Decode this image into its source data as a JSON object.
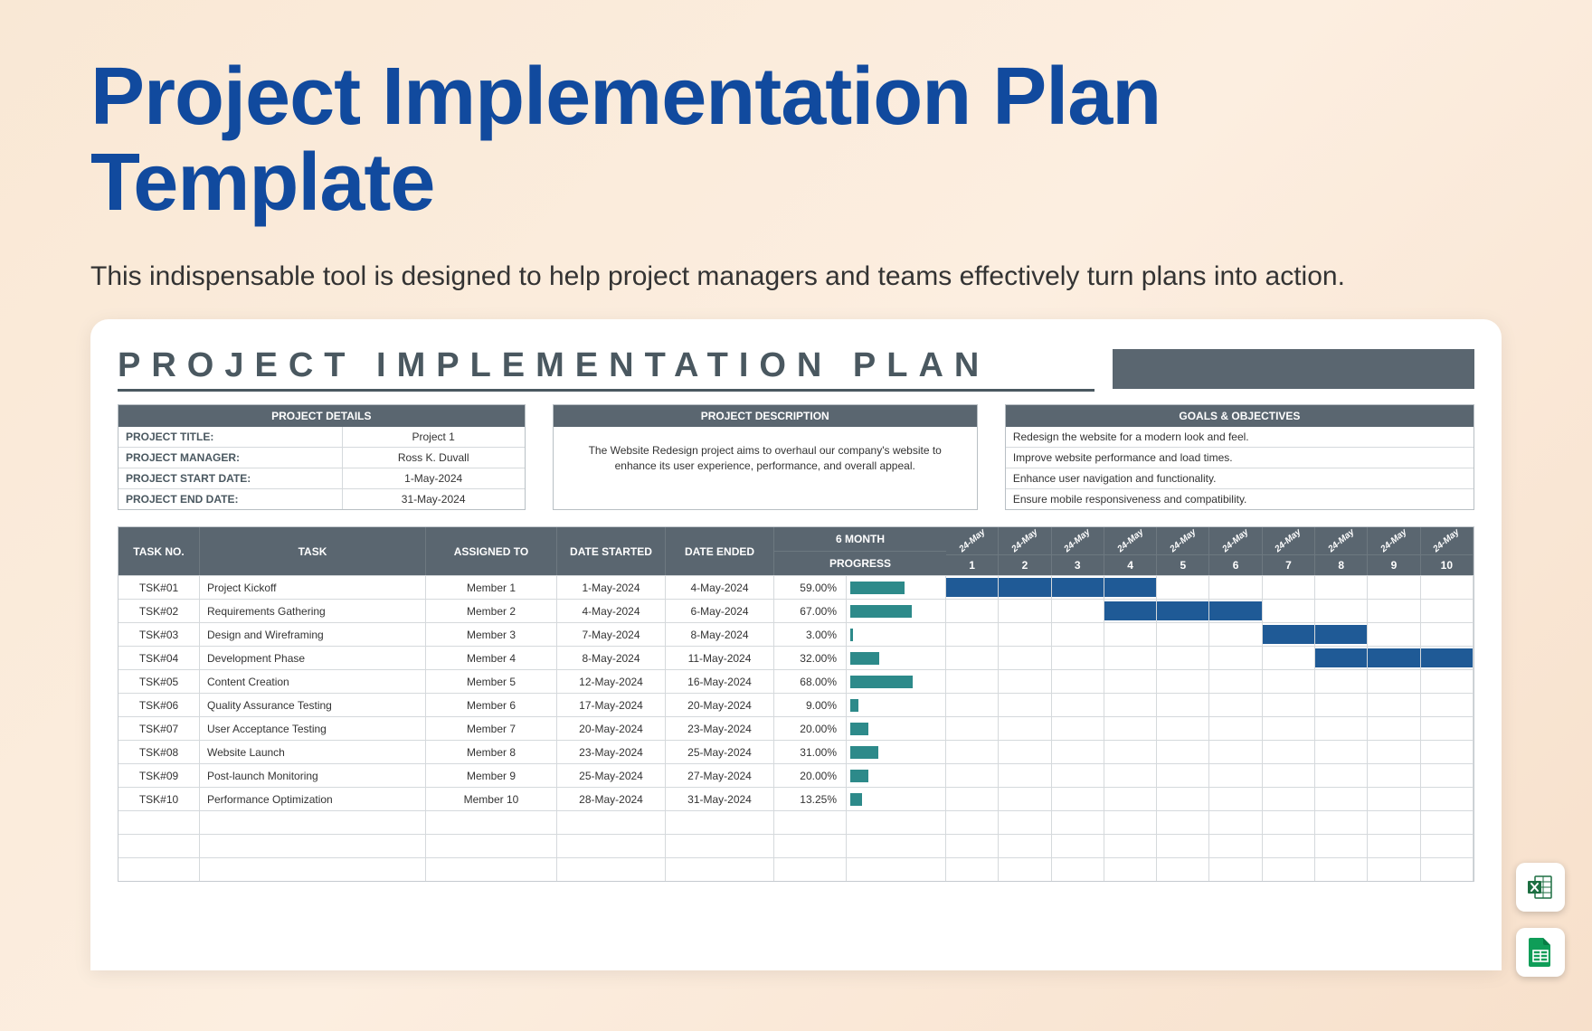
{
  "page": {
    "title": "Project Implementation Plan Template",
    "subtitle": "This indispensable tool is designed to help project managers and teams effectively turn plans into action."
  },
  "colors": {
    "title": "#114a9e",
    "header_bg": "#5a6670",
    "progress_bar": "#2d8a8a",
    "gantt_bar": "#1f5a96",
    "border": "#d5d9dc"
  },
  "sheet": {
    "heading": "PROJECT IMPLEMENTATION PLAN",
    "details": {
      "header": "PROJECT DETAILS",
      "rows": [
        {
          "label": "PROJECT TITLE:",
          "value": "Project 1"
        },
        {
          "label": "PROJECT MANAGER:",
          "value": "Ross K. Duvall"
        },
        {
          "label": "PROJECT START DATE:",
          "value": "1-May-2024"
        },
        {
          "label": "PROJECT END DATE:",
          "value": "31-May-2024"
        }
      ]
    },
    "description": {
      "header": "PROJECT DESCRIPTION",
      "body": "The Website Redesign project aims to overhaul our company's website to enhance its user experience, performance, and overall appeal."
    },
    "goals": {
      "header": "GOALS & OBJECTIVES",
      "items": [
        "Redesign the website for a modern look and feel.",
        "Improve website performance and load times.",
        "Enhance user navigation and functionality.",
        "Ensure mobile responsiveness and compatibility."
      ]
    },
    "table": {
      "columns": {
        "taskno": "TASK NO.",
        "task": "TASK",
        "assigned": "ASSIGNED TO",
        "start": "DATE STARTED",
        "end": "DATE ENDED",
        "month": "6 MONTH",
        "progress": "PROGRESS"
      },
      "day_label": "24-May",
      "day_count": 10,
      "rows": [
        {
          "no": "TSK#01",
          "task": "Project Kickoff",
          "assigned": "Member 1",
          "start": "1-May-2024",
          "end": "4-May-2024",
          "pct": "59.00%",
          "bar": 59,
          "gantt": [
            1,
            2,
            3,
            4
          ]
        },
        {
          "no": "TSK#02",
          "task": "Requirements Gathering",
          "assigned": "Member 2",
          "start": "4-May-2024",
          "end": "6-May-2024",
          "pct": "67.00%",
          "bar": 67,
          "gantt": [
            4,
            5,
            6
          ]
        },
        {
          "no": "TSK#03",
          "task": "Design and Wireframing",
          "assigned": "Member 3",
          "start": "7-May-2024",
          "end": "8-May-2024",
          "pct": "3.00%",
          "bar": 3,
          "gantt": [
            7,
            8
          ]
        },
        {
          "no": "TSK#04",
          "task": "Development Phase",
          "assigned": "Member 4",
          "start": "8-May-2024",
          "end": "11-May-2024",
          "pct": "32.00%",
          "bar": 32,
          "gantt": [
            8,
            9,
            10
          ]
        },
        {
          "no": "TSK#05",
          "task": "Content Creation",
          "assigned": "Member 5",
          "start": "12-May-2024",
          "end": "16-May-2024",
          "pct": "68.00%",
          "bar": 68,
          "gantt": []
        },
        {
          "no": "TSK#06",
          "task": "Quality Assurance Testing",
          "assigned": "Member 6",
          "start": "17-May-2024",
          "end": "20-May-2024",
          "pct": "9.00%",
          "bar": 9,
          "gantt": []
        },
        {
          "no": "TSK#07",
          "task": "User Acceptance Testing",
          "assigned": "Member 7",
          "start": "20-May-2024",
          "end": "23-May-2024",
          "pct": "20.00%",
          "bar": 20,
          "gantt": []
        },
        {
          "no": "TSK#08",
          "task": "Website Launch",
          "assigned": "Member 8",
          "start": "23-May-2024",
          "end": "25-May-2024",
          "pct": "31.00%",
          "bar": 31,
          "gantt": []
        },
        {
          "no": "TSK#09",
          "task": "Post-launch Monitoring",
          "assigned": "Member 9",
          "start": "25-May-2024",
          "end": "27-May-2024",
          "pct": "20.00%",
          "bar": 20,
          "gantt": []
        },
        {
          "no": "TSK#10",
          "task": "Performance Optimization",
          "assigned": "Member 10",
          "start": "28-May-2024",
          "end": "31-May-2024",
          "pct": "13.25%",
          "bar": 13.25,
          "gantt": []
        }
      ],
      "empty_rows": 3
    }
  },
  "icons": {
    "excel": "excel-icon",
    "sheets": "sheets-icon"
  }
}
